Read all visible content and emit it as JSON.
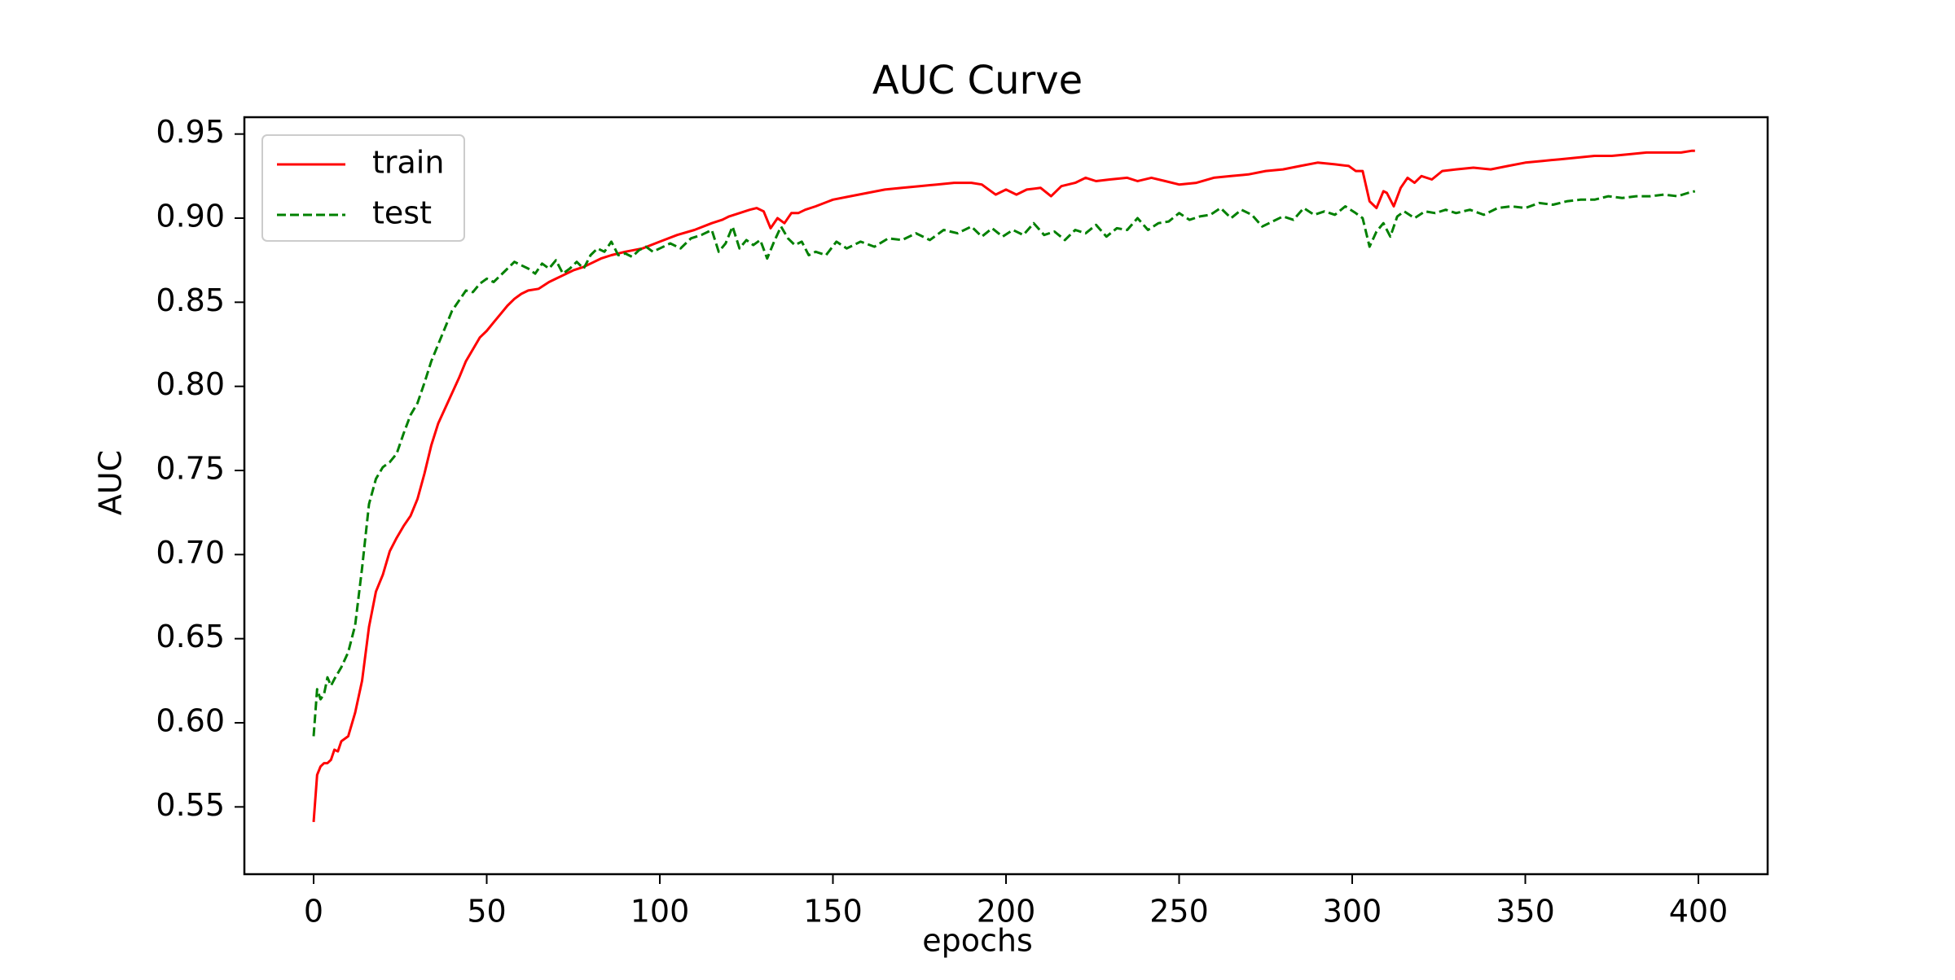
{
  "chart_data": {
    "type": "line",
    "title": "AUC Curve",
    "xlabel": "epochs",
    "ylabel": "AUC",
    "xlim": [
      -20,
      420
    ],
    "ylim": [
      0.51,
      0.96
    ],
    "xticks": [
      0,
      50,
      100,
      150,
      200,
      250,
      300,
      350,
      400
    ],
    "yticks": [
      0.55,
      0.6,
      0.65,
      0.7,
      0.75,
      0.8,
      0.85,
      0.9,
      0.95
    ],
    "grid": false,
    "legend_position": "top-left",
    "series": [
      {
        "name": "train",
        "color": "#ff0000",
        "style": "solid",
        "points": [
          [
            0,
            0.541
          ],
          [
            1,
            0.569
          ],
          [
            2,
            0.574
          ],
          [
            3,
            0.576
          ],
          [
            4,
            0.576
          ],
          [
            5,
            0.578
          ],
          [
            6,
            0.584
          ],
          [
            7,
            0.583
          ],
          [
            8,
            0.589
          ],
          [
            10,
            0.592
          ],
          [
            12,
            0.606
          ],
          [
            14,
            0.625
          ],
          [
            16,
            0.657
          ],
          [
            18,
            0.678
          ],
          [
            20,
            0.688
          ],
          [
            22,
            0.702
          ],
          [
            24,
            0.71
          ],
          [
            26,
            0.717
          ],
          [
            28,
            0.723
          ],
          [
            30,
            0.733
          ],
          [
            32,
            0.748
          ],
          [
            34,
            0.765
          ],
          [
            36,
            0.778
          ],
          [
            38,
            0.787
          ],
          [
            40,
            0.796
          ],
          [
            42,
            0.805
          ],
          [
            44,
            0.815
          ],
          [
            46,
            0.822
          ],
          [
            48,
            0.829
          ],
          [
            50,
            0.833
          ],
          [
            52,
            0.838
          ],
          [
            54,
            0.843
          ],
          [
            56,
            0.848
          ],
          [
            58,
            0.852
          ],
          [
            60,
            0.855
          ],
          [
            62,
            0.857
          ],
          [
            65,
            0.858
          ],
          [
            68,
            0.862
          ],
          [
            70,
            0.864
          ],
          [
            72,
            0.866
          ],
          [
            75,
            0.869
          ],
          [
            78,
            0.871
          ],
          [
            80,
            0.873
          ],
          [
            83,
            0.876
          ],
          [
            86,
            0.878
          ],
          [
            90,
            0.88
          ],
          [
            95,
            0.882
          ],
          [
            100,
            0.886
          ],
          [
            105,
            0.89
          ],
          [
            110,
            0.893
          ],
          [
            115,
            0.897
          ],
          [
            118,
            0.899
          ],
          [
            120,
            0.901
          ],
          [
            123,
            0.903
          ],
          [
            126,
            0.905
          ],
          [
            128,
            0.906
          ],
          [
            130,
            0.904
          ],
          [
            132,
            0.894
          ],
          [
            134,
            0.9
          ],
          [
            136,
            0.897
          ],
          [
            138,
            0.903
          ],
          [
            140,
            0.903
          ],
          [
            142,
            0.905
          ],
          [
            145,
            0.907
          ],
          [
            150,
            0.911
          ],
          [
            155,
            0.913
          ],
          [
            160,
            0.915
          ],
          [
            165,
            0.917
          ],
          [
            170,
            0.918
          ],
          [
            175,
            0.919
          ],
          [
            180,
            0.92
          ],
          [
            185,
            0.921
          ],
          [
            190,
            0.921
          ],
          [
            193,
            0.92
          ],
          [
            195,
            0.917
          ],
          [
            197,
            0.914
          ],
          [
            200,
            0.917
          ],
          [
            203,
            0.914
          ],
          [
            206,
            0.917
          ],
          [
            210,
            0.918
          ],
          [
            213,
            0.913
          ],
          [
            216,
            0.919
          ],
          [
            220,
            0.921
          ],
          [
            223,
            0.924
          ],
          [
            226,
            0.922
          ],
          [
            230,
            0.923
          ],
          [
            235,
            0.924
          ],
          [
            238,
            0.922
          ],
          [
            242,
            0.924
          ],
          [
            246,
            0.922
          ],
          [
            250,
            0.92
          ],
          [
            255,
            0.921
          ],
          [
            260,
            0.924
          ],
          [
            265,
            0.925
          ],
          [
            270,
            0.926
          ],
          [
            275,
            0.928
          ],
          [
            280,
            0.929
          ],
          [
            285,
            0.931
          ],
          [
            290,
            0.933
          ],
          [
            295,
            0.932
          ],
          [
            299,
            0.931
          ],
          [
            301,
            0.928
          ],
          [
            303,
            0.928
          ],
          [
            305,
            0.91
          ],
          [
            307,
            0.906
          ],
          [
            309,
            0.916
          ],
          [
            310,
            0.915
          ],
          [
            312,
            0.907
          ],
          [
            314,
            0.918
          ],
          [
            316,
            0.924
          ],
          [
            318,
            0.921
          ],
          [
            320,
            0.925
          ],
          [
            323,
            0.923
          ],
          [
            326,
            0.928
          ],
          [
            330,
            0.929
          ],
          [
            335,
            0.93
          ],
          [
            340,
            0.929
          ],
          [
            345,
            0.931
          ],
          [
            350,
            0.933
          ],
          [
            355,
            0.934
          ],
          [
            360,
            0.935
          ],
          [
            365,
            0.936
          ],
          [
            370,
            0.937
          ],
          [
            375,
            0.937
          ],
          [
            380,
            0.938
          ],
          [
            385,
            0.939
          ],
          [
            390,
            0.939
          ],
          [
            395,
            0.939
          ],
          [
            398,
            0.94
          ],
          [
            399,
            0.94
          ]
        ]
      },
      {
        "name": "test",
        "color": "#008000",
        "style": "dashed",
        "points": [
          [
            0,
            0.592
          ],
          [
            1,
            0.62
          ],
          [
            2,
            0.614
          ],
          [
            3,
            0.617
          ],
          [
            4,
            0.627
          ],
          [
            5,
            0.622
          ],
          [
            6,
            0.626
          ],
          [
            8,
            0.633
          ],
          [
            10,
            0.642
          ],
          [
            12,
            0.658
          ],
          [
            14,
            0.692
          ],
          [
            16,
            0.73
          ],
          [
            18,
            0.745
          ],
          [
            20,
            0.752
          ],
          [
            22,
            0.755
          ],
          [
            24,
            0.76
          ],
          [
            26,
            0.772
          ],
          [
            28,
            0.783
          ],
          [
            30,
            0.79
          ],
          [
            32,
            0.802
          ],
          [
            34,
            0.815
          ],
          [
            36,
            0.825
          ],
          [
            38,
            0.835
          ],
          [
            40,
            0.845
          ],
          [
            42,
            0.851
          ],
          [
            44,
            0.857
          ],
          [
            46,
            0.856
          ],
          [
            48,
            0.861
          ],
          [
            50,
            0.864
          ],
          [
            52,
            0.862
          ],
          [
            54,
            0.866
          ],
          [
            56,
            0.87
          ],
          [
            58,
            0.874
          ],
          [
            60,
            0.872
          ],
          [
            62,
            0.87
          ],
          [
            64,
            0.867
          ],
          [
            66,
            0.873
          ],
          [
            68,
            0.87
          ],
          [
            70,
            0.875
          ],
          [
            72,
            0.867
          ],
          [
            74,
            0.87
          ],
          [
            76,
            0.874
          ],
          [
            78,
            0.87
          ],
          [
            80,
            0.878
          ],
          [
            82,
            0.882
          ],
          [
            84,
            0.88
          ],
          [
            86,
            0.886
          ],
          [
            88,
            0.878
          ],
          [
            90,
            0.879
          ],
          [
            92,
            0.877
          ],
          [
            94,
            0.881
          ],
          [
            96,
            0.883
          ],
          [
            98,
            0.88
          ],
          [
            100,
            0.882
          ],
          [
            103,
            0.885
          ],
          [
            106,
            0.882
          ],
          [
            109,
            0.888
          ],
          [
            112,
            0.89
          ],
          [
            115,
            0.893
          ],
          [
            117,
            0.88
          ],
          [
            119,
            0.885
          ],
          [
            121,
            0.895
          ],
          [
            123,
            0.882
          ],
          [
            125,
            0.887
          ],
          [
            127,
            0.884
          ],
          [
            129,
            0.887
          ],
          [
            131,
            0.876
          ],
          [
            133,
            0.886
          ],
          [
            135,
            0.895
          ],
          [
            137,
            0.888
          ],
          [
            139,
            0.884
          ],
          [
            141,
            0.886
          ],
          [
            143,
            0.878
          ],
          [
            145,
            0.88
          ],
          [
            148,
            0.878
          ],
          [
            151,
            0.886
          ],
          [
            154,
            0.882
          ],
          [
            158,
            0.886
          ],
          [
            162,
            0.883
          ],
          [
            166,
            0.888
          ],
          [
            170,
            0.887
          ],
          [
            174,
            0.891
          ],
          [
            178,
            0.887
          ],
          [
            182,
            0.893
          ],
          [
            186,
            0.891
          ],
          [
            190,
            0.895
          ],
          [
            193,
            0.889
          ],
          [
            196,
            0.894
          ],
          [
            199,
            0.889
          ],
          [
            202,
            0.893
          ],
          [
            205,
            0.89
          ],
          [
            208,
            0.897
          ],
          [
            211,
            0.89
          ],
          [
            214,
            0.892
          ],
          [
            217,
            0.887
          ],
          [
            220,
            0.893
          ],
          [
            223,
            0.891
          ],
          [
            226,
            0.896
          ],
          [
            229,
            0.889
          ],
          [
            232,
            0.894
          ],
          [
            235,
            0.893
          ],
          [
            238,
            0.9
          ],
          [
            241,
            0.893
          ],
          [
            244,
            0.897
          ],
          [
            247,
            0.898
          ],
          [
            250,
            0.903
          ],
          [
            253,
            0.899
          ],
          [
            256,
            0.901
          ],
          [
            259,
            0.902
          ],
          [
            262,
            0.906
          ],
          [
            265,
            0.9
          ],
          [
            268,
            0.905
          ],
          [
            271,
            0.902
          ],
          [
            274,
            0.895
          ],
          [
            277,
            0.898
          ],
          [
            280,
            0.901
          ],
          [
            283,
            0.899
          ],
          [
            286,
            0.906
          ],
          [
            289,
            0.902
          ],
          [
            292,
            0.904
          ],
          [
            295,
            0.902
          ],
          [
            298,
            0.907
          ],
          [
            301,
            0.903
          ],
          [
            303,
            0.9
          ],
          [
            305,
            0.883
          ],
          [
            307,
            0.892
          ],
          [
            309,
            0.897
          ],
          [
            311,
            0.889
          ],
          [
            313,
            0.901
          ],
          [
            315,
            0.904
          ],
          [
            318,
            0.9
          ],
          [
            321,
            0.904
          ],
          [
            324,
            0.903
          ],
          [
            327,
            0.905
          ],
          [
            330,
            0.903
          ],
          [
            334,
            0.905
          ],
          [
            338,
            0.902
          ],
          [
            342,
            0.906
          ],
          [
            346,
            0.907
          ],
          [
            350,
            0.906
          ],
          [
            354,
            0.909
          ],
          [
            358,
            0.908
          ],
          [
            362,
            0.91
          ],
          [
            366,
            0.911
          ],
          [
            370,
            0.911
          ],
          [
            374,
            0.913
          ],
          [
            378,
            0.912
          ],
          [
            382,
            0.913
          ],
          [
            386,
            0.913
          ],
          [
            390,
            0.914
          ],
          [
            394,
            0.913
          ],
          [
            397,
            0.915
          ],
          [
            399,
            0.916
          ]
        ]
      }
    ]
  }
}
